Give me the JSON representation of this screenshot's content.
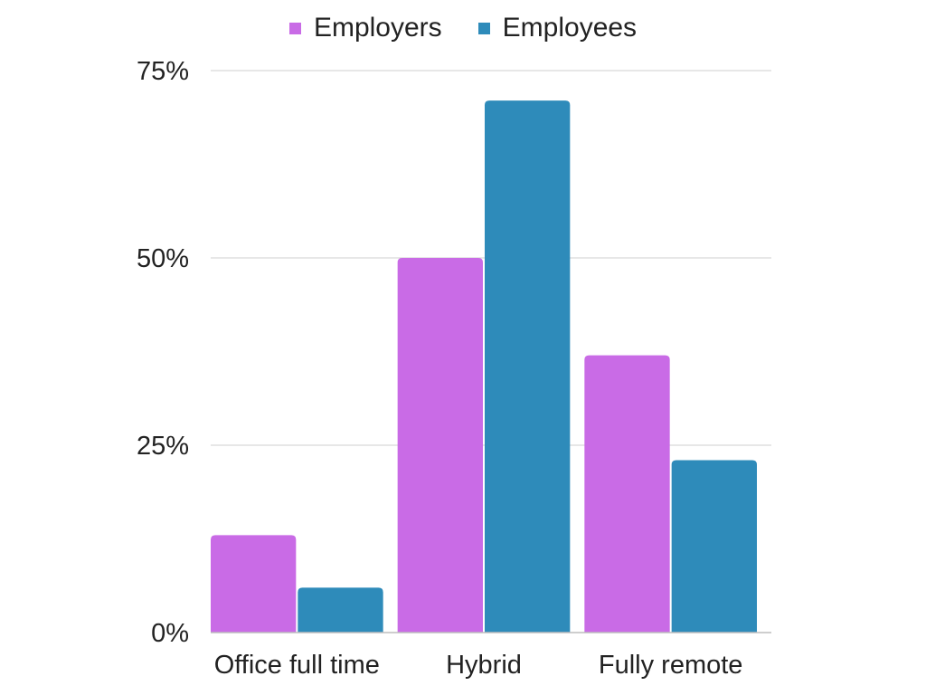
{
  "chart_data": {
    "type": "bar",
    "categories": [
      "Office full time",
      "Hybrid",
      "Fully remote"
    ],
    "series": [
      {
        "name": "Employers",
        "values": [
          13,
          50,
          37
        ],
        "color": "#c96be6"
      },
      {
        "name": "Employees",
        "values": [
          6,
          71,
          23
        ],
        "color": "#2e8bba"
      }
    ],
    "y_ticks": [
      {
        "value": 0,
        "label": "0%"
      },
      {
        "value": 25,
        "label": "25%"
      },
      {
        "value": 50,
        "label": "50%"
      },
      {
        "value": 75,
        "label": "75%"
      }
    ],
    "ylim": [
      0,
      75
    ],
    "grid": true,
    "legend_position": "top-center",
    "title": "",
    "xlabel": "",
    "ylabel": ""
  }
}
